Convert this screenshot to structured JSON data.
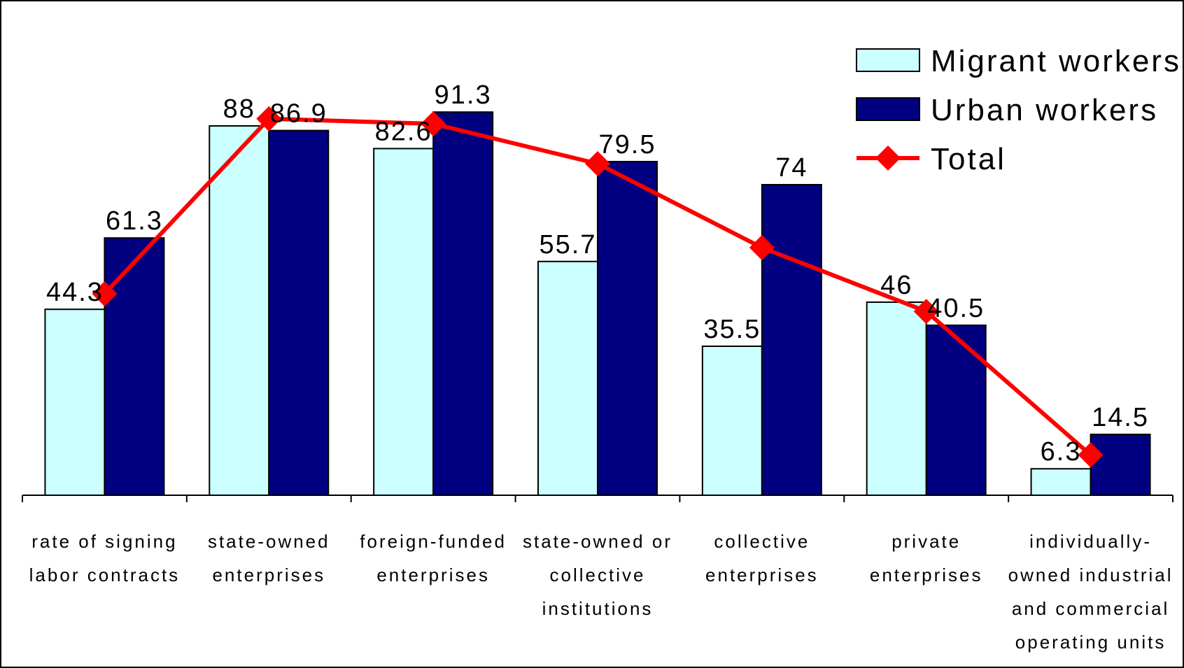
{
  "chart_data": {
    "type": "bar",
    "title": "",
    "xlabel": "",
    "ylabel": "",
    "ylim": [
      0,
      100
    ],
    "grid": false,
    "legend_position": "top-right",
    "categories": [
      [
        "rate of signing",
        "labor contracts"
      ],
      [
        "state-owned",
        "enterprises"
      ],
      [
        "foreign-funded",
        "enterprises"
      ],
      [
        "state-owned or",
        "collective",
        "institutions"
      ],
      [
        "collective",
        "enterprises"
      ],
      [
        "private",
        "enterprises"
      ],
      [
        "individually-",
        "owned industrial",
        "and commercial",
        "operating units"
      ]
    ],
    "series": [
      {
        "name": "Migrant workers",
        "type": "bar",
        "color": "#ccffff",
        "values": [
          44.3,
          88,
          82.6,
          55.7,
          35.5,
          46,
          6.3
        ],
        "labels": [
          "44.3",
          "88",
          "82.6",
          "55.7",
          "35.5",
          "46",
          "6.3"
        ]
      },
      {
        "name": "Urban workers",
        "type": "bar",
        "color": "#000080",
        "values": [
          61.3,
          86.9,
          91.3,
          79.5,
          74,
          40.5,
          14.5
        ],
        "labels": [
          "61.3",
          "86.9",
          "91.3",
          "79.5",
          "74",
          "40.5",
          "14.5"
        ]
      },
      {
        "name": "Total",
        "type": "line",
        "color": "#ff0000",
        "values": [
          48,
          89.7,
          88.5,
          79,
          59,
          43.8,
          9.6
        ]
      }
    ]
  }
}
